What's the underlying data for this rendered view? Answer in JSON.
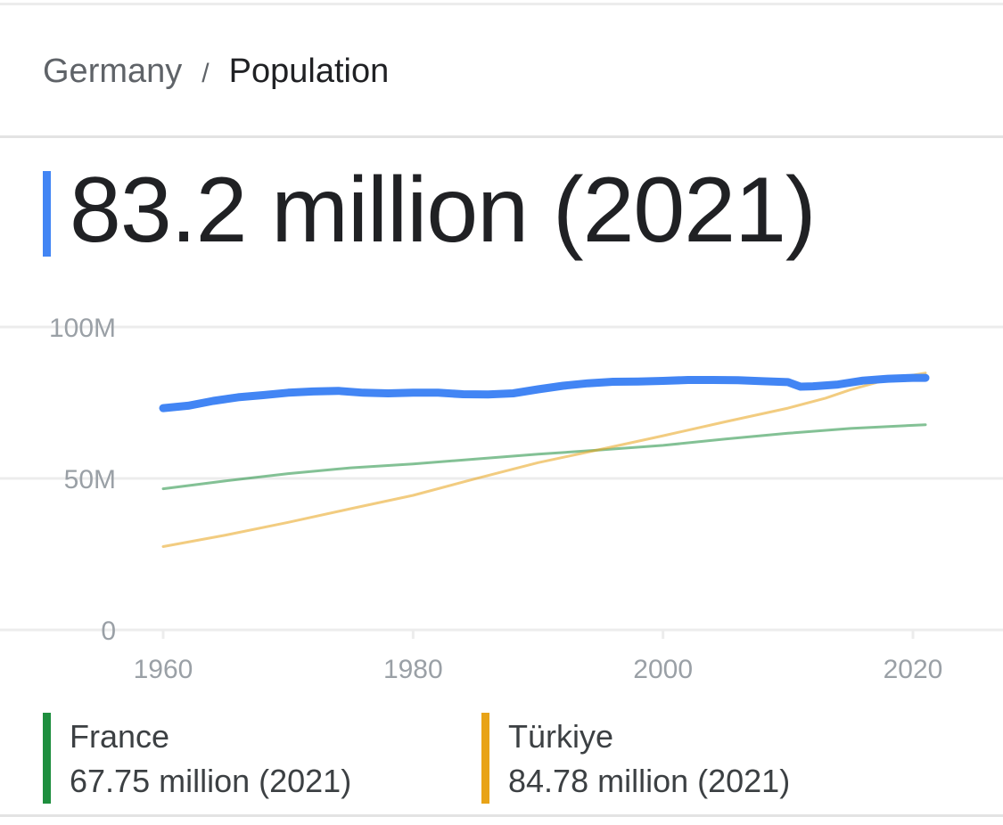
{
  "breadcrumb": {
    "parent": "Germany",
    "separator": "/",
    "current": "Population"
  },
  "headline": {
    "value": "83.2 million (2021)"
  },
  "colors": {
    "germany": "#4285f4",
    "france": "#1e8e3e",
    "turkiye": "#e8a317",
    "grid": "#ececec",
    "tick": "#9aa0a6"
  },
  "legend": [
    {
      "name": "France",
      "value": "67.75 million (2021)",
      "color": "#1e8e3e"
    },
    {
      "name": "Türkiye",
      "value": "84.78 million (2021)",
      "color": "#e8a317"
    }
  ],
  "chart_data": {
    "type": "line",
    "title": "",
    "xlabel": "",
    "ylabel": "",
    "xlim": [
      1960,
      2021
    ],
    "ylim": [
      0,
      100
    ],
    "x_ticks": [
      1960,
      1980,
      2000,
      2020
    ],
    "y_ticks": [
      {
        "value": 0,
        "label": "0"
      },
      {
        "value": 50,
        "label": "50M"
      },
      {
        "value": 100,
        "label": "100M"
      }
    ],
    "grid": true,
    "series": [
      {
        "key": "germany",
        "color": "#4285f4",
        "x": [
          1960,
          1962,
          1964,
          1966,
          1968,
          1970,
          1972,
          1974,
          1976,
          1978,
          1980,
          1982,
          1984,
          1986,
          1988,
          1990,
          1992,
          1994,
          1996,
          1998,
          2000,
          2002,
          2004,
          2006,
          2008,
          2010,
          2011,
          2012,
          2014,
          2016,
          2018,
          2020,
          2021
        ],
        "values": [
          73.2,
          74.0,
          75.6,
          76.8,
          77.5,
          78.3,
          78.7,
          78.9,
          78.3,
          78.1,
          78.3,
          78.3,
          77.8,
          77.7,
          78.1,
          79.4,
          80.6,
          81.4,
          81.9,
          82.0,
          82.2,
          82.5,
          82.5,
          82.4,
          82.1,
          81.8,
          80.3,
          80.4,
          81.0,
          82.3,
          82.9,
          83.2,
          83.2
        ]
      },
      {
        "name": "France",
        "key": "france",
        "color": "#1e8e3e",
        "x": [
          1960,
          1965,
          1970,
          1975,
          1980,
          1985,
          1990,
          1995,
          2000,
          2005,
          2010,
          2015,
          2021
        ],
        "values": [
          46.6,
          49.2,
          51.6,
          53.5,
          54.8,
          56.4,
          58.0,
          59.4,
          60.9,
          63.0,
          64.9,
          66.5,
          67.75
        ]
      },
      {
        "name": "Türkiye",
        "key": "turkiye",
        "color": "#e8a317",
        "x": [
          1960,
          1965,
          1970,
          1975,
          1980,
          1985,
          1990,
          1995,
          2000,
          2005,
          2010,
          2013,
          2015,
          2018,
          2021
        ],
        "values": [
          27.5,
          31.3,
          35.5,
          40.0,
          44.4,
          49.9,
          55.2,
          59.6,
          64.1,
          68.7,
          73.2,
          76.5,
          79.3,
          82.7,
          84.78
        ]
      }
    ]
  }
}
